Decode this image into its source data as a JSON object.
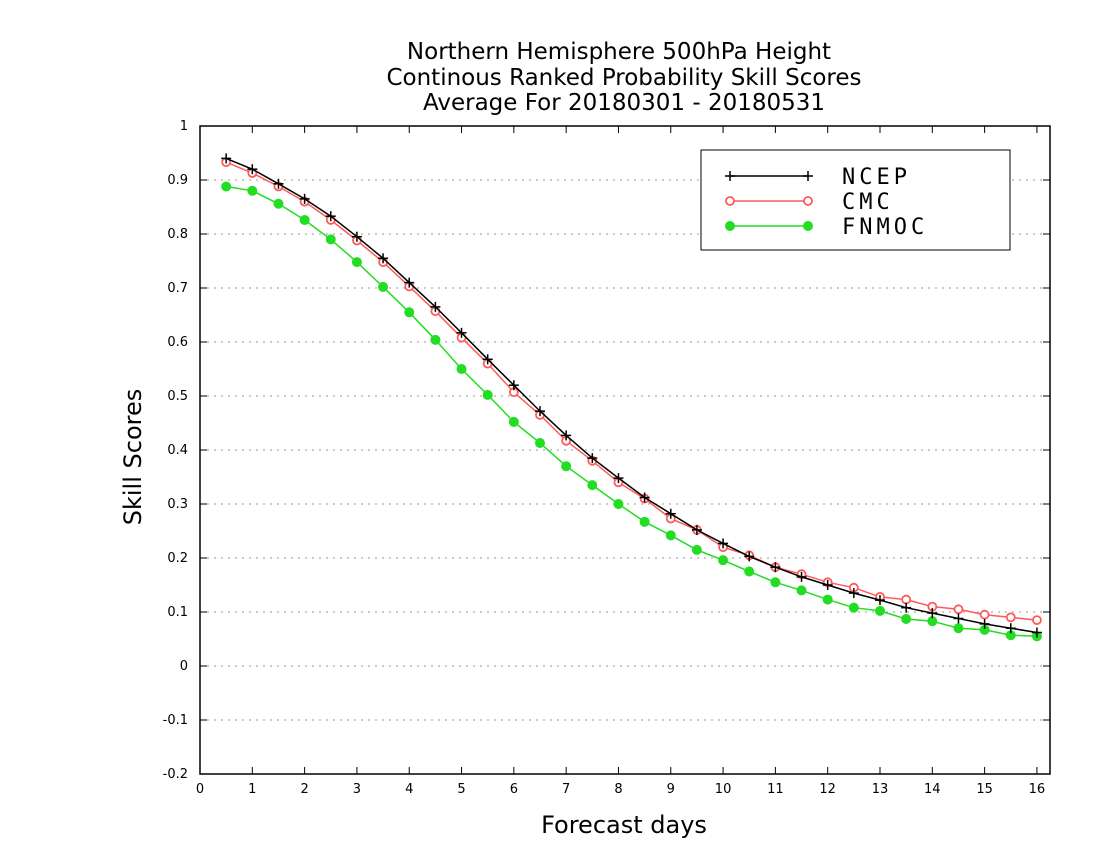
{
  "chart_data": {
    "type": "line",
    "title": [
      "Northern Hemisphere 500hPa Height",
      "Continous Ranked Probability Skill Scores",
      "Average For 20180301 - 20180531"
    ],
    "xlabel": "Forecast days",
    "ylabel": "Skill Scores",
    "xlim": [
      0,
      16.25
    ],
    "ylim": [
      -0.2,
      1
    ],
    "xticks": [
      0,
      1,
      2,
      3,
      4,
      5,
      6,
      7,
      8,
      9,
      10,
      11,
      12,
      13,
      14,
      15,
      16
    ],
    "yticks": [
      -0.2,
      -0.1,
      0,
      0.1,
      0.2,
      0.3,
      0.4,
      0.5,
      0.6,
      0.7,
      0.8,
      0.9,
      1
    ],
    "ytick_labels": [
      "-0.2",
      "-0.1",
      "0",
      "0.1",
      "0.2",
      "0.3",
      "0.4",
      "0.5",
      "0.6",
      "0.7",
      "0.8",
      "0.9",
      "1"
    ],
    "grid": "horizontal dotted",
    "legend_position": "top-right",
    "x": [
      0.5,
      1,
      1.5,
      2,
      2.5,
      3,
      3.5,
      4,
      4.5,
      5,
      5.5,
      6,
      6.5,
      7,
      7.5,
      8,
      8.5,
      9,
      9.5,
      10,
      10.5,
      11,
      11.5,
      12,
      12.5,
      13,
      13.5,
      14,
      14.5,
      15,
      15.5,
      16
    ],
    "series": [
      {
        "name": "NCEP",
        "color": "#000000",
        "marker": "plus",
        "values": [
          0.94,
          0.92,
          0.893,
          0.865,
          0.833,
          0.795,
          0.755,
          0.71,
          0.665,
          0.617,
          0.568,
          0.52,
          0.472,
          0.427,
          0.385,
          0.348,
          0.312,
          0.282,
          0.252,
          0.227,
          0.203,
          0.183,
          0.165,
          0.15,
          0.135,
          0.122,
          0.108,
          0.098,
          0.088,
          0.078,
          0.07,
          0.062
        ]
      },
      {
        "name": "CMC",
        "color": "#ff5a5a",
        "marker": "open-circle",
        "values": [
          0.933,
          0.913,
          0.888,
          0.86,
          0.826,
          0.788,
          0.748,
          0.703,
          0.657,
          0.608,
          0.56,
          0.507,
          0.465,
          0.417,
          0.38,
          0.34,
          0.31,
          0.273,
          0.252,
          0.22,
          0.205,
          0.183,
          0.17,
          0.155,
          0.145,
          0.128,
          0.123,
          0.11,
          0.105,
          0.095,
          0.09,
          0.085
        ]
      },
      {
        "name": "FNMOC",
        "color": "#22dd22",
        "marker": "filled-circle",
        "values": [
          0.888,
          0.88,
          0.856,
          0.826,
          0.79,
          0.748,
          0.702,
          0.655,
          0.604,
          0.55,
          0.502,
          0.452,
          0.413,
          0.37,
          0.335,
          0.3,
          0.267,
          0.242,
          0.215,
          0.196,
          0.175,
          0.155,
          0.14,
          0.123,
          0.108,
          0.102,
          0.087,
          0.083,
          0.07,
          0.067,
          0.057,
          0.055
        ]
      }
    ]
  }
}
